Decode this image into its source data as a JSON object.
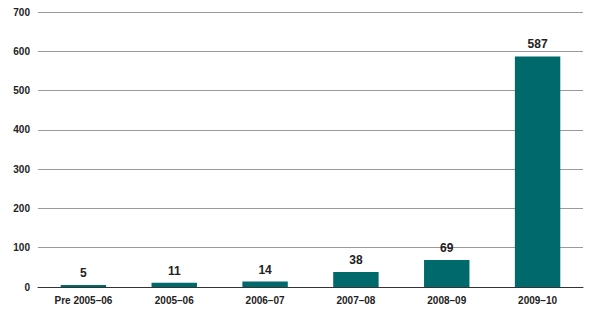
{
  "chart_data": {
    "type": "bar",
    "categories": [
      "Pre 2005–06",
      "2005–06",
      "2006–07",
      "2007–08",
      "2008–09",
      "2009–10"
    ],
    "values": [
      5,
      11,
      14,
      38,
      69,
      587
    ],
    "color": "#00696b",
    "ylim": [
      0,
      700
    ],
    "yticks": [
      0,
      100,
      200,
      300,
      400,
      500,
      600,
      700
    ],
    "grid": true,
    "data_labels": true
  }
}
